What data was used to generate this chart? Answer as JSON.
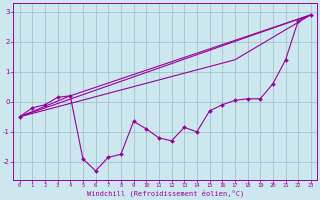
{
  "title": "",
  "xlabel": "Windchill (Refroidissement éolien,°C)",
  "ylabel": "",
  "bg_color": "#cce8ee",
  "line_color": "#990099",
  "grid_color": "#99bbcc",
  "xlim": [
    -0.5,
    23.5
  ],
  "ylim": [
    -2.6,
    3.3
  ],
  "xticks": [
    0,
    1,
    2,
    3,
    4,
    5,
    6,
    7,
    8,
    9,
    10,
    11,
    12,
    13,
    14,
    15,
    16,
    17,
    18,
    19,
    20,
    21,
    22,
    23
  ],
  "yticks": [
    -2,
    -1,
    0,
    1,
    2,
    3
  ],
  "line1_x": [
    0,
    1,
    2,
    3,
    4,
    5,
    6,
    7,
    8,
    9,
    10,
    11,
    12,
    13,
    14,
    15,
    16,
    17,
    18,
    19,
    20,
    21,
    22,
    23
  ],
  "line1_y": [
    -0.5,
    -0.2,
    -0.1,
    0.15,
    0.2,
    -1.9,
    -2.3,
    -1.85,
    -1.75,
    -0.65,
    -0.9,
    -1.2,
    -1.3,
    -0.85,
    -1.0,
    -0.3,
    -0.1,
    0.05,
    0.1,
    0.1,
    0.6,
    1.4,
    2.7,
    2.9
  ],
  "line2_x": [
    0,
    23
  ],
  "line2_y": [
    -0.5,
    2.9
  ],
  "line3_x": [
    0,
    4,
    23
  ],
  "line3_y": [
    -0.5,
    0.2,
    2.9
  ],
  "line4_x": [
    0,
    17,
    23
  ],
  "line4_y": [
    -0.5,
    1.4,
    2.9
  ]
}
